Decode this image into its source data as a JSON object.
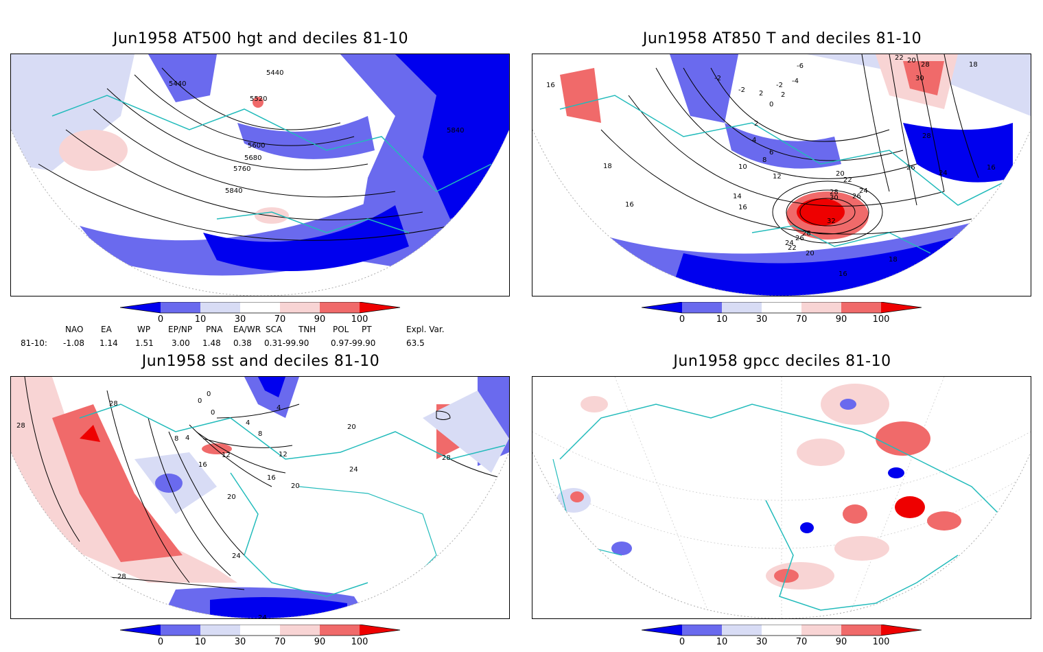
{
  "panels": [
    {
      "title": "Jun1958 AT500 hgt and deciles 81-10",
      "contour_labels": [
        "5440",
        "5440",
        "5520",
        "5600",
        "5680",
        "5760",
        "5840",
        "5840"
      ]
    },
    {
      "title": "Jun1958 AT850 T and deciles 81-10",
      "contour_labels": [
        "16",
        "-2",
        "-6",
        "-4",
        "-2",
        "2",
        "0",
        "2",
        "-2",
        "2",
        "4",
        "6",
        "8",
        "10",
        "12",
        "14",
        "16",
        "18",
        "16",
        "20",
        "22",
        "24",
        "26",
        "28",
        "30",
        "32",
        "28",
        "26",
        "24",
        "22",
        "20",
        "18",
        "16",
        "22",
        "20",
        "28",
        "30",
        "28",
        "26",
        "24",
        "18",
        "16"
      ]
    },
    {
      "title": "Jun1958 sst and deciles 81-10",
      "contour_labels": [
        "28",
        "28",
        "0",
        "0",
        "0",
        "4",
        "4",
        "8",
        "12",
        "16",
        "20",
        "24",
        "28",
        "20",
        "20",
        "24",
        "16",
        "12",
        "8",
        "4",
        "28",
        "24"
      ]
    },
    {
      "title": "Jun1958 gpcc deciles 81-10",
      "contour_labels": []
    }
  ],
  "colorbar": {
    "tick_labels": [
      "0",
      "10",
      "30",
      "70",
      "90",
      "100"
    ],
    "colors": [
      "#0000ee",
      "#6a6aee",
      "#d8dcf5",
      "#ffffff",
      "#f8d4d4",
      "#f06a6a",
      "#ee0000"
    ]
  },
  "teleconnection": {
    "headers": [
      "NAO",
      "EA",
      "WP",
      "EP/NP",
      "PNA",
      "EA/WR",
      "SCA",
      "TNH",
      "POL",
      "PT",
      "Expl. Var."
    ],
    "row_label": "81-10:",
    "values": [
      "-1.08",
      "1.14",
      "1.51",
      "3.00",
      "1.48",
      "0.38",
      "0.31-99.90",
      "0.97-99.90",
      "63.5"
    ]
  },
  "colors": {
    "coastline": "#22bbbb",
    "contour": "#000000"
  }
}
